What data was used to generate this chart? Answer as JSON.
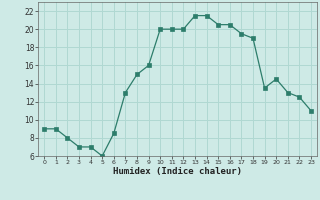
{
  "x": [
    0,
    1,
    2,
    3,
    4,
    5,
    6,
    7,
    8,
    9,
    10,
    11,
    12,
    13,
    14,
    15,
    16,
    17,
    18,
    19,
    20,
    21,
    22,
    23
  ],
  "y": [
    9.0,
    9.0,
    8.0,
    7.0,
    7.0,
    6.0,
    8.5,
    13.0,
    15.0,
    16.0,
    20.0,
    20.0,
    20.0,
    21.5,
    21.5,
    20.5,
    20.5,
    19.5,
    19.0,
    13.5,
    14.5,
    13.0,
    12.5,
    11.0
  ],
  "title": "",
  "xlabel": "Humidex (Indice chaleur)",
  "ylabel": "",
  "ylim": [
    6,
    23
  ],
  "xlim": [
    -0.5,
    23.5
  ],
  "line_color": "#2d7d6b",
  "marker_color": "#2d7d6b",
  "bg_color": "#ceeae6",
  "grid_color": "#b0d8d2",
  "yticks": [
    6,
    8,
    10,
    12,
    14,
    16,
    18,
    20,
    22
  ],
  "xticks": [
    0,
    1,
    2,
    3,
    4,
    5,
    6,
    7,
    8,
    9,
    10,
    11,
    12,
    13,
    14,
    15,
    16,
    17,
    18,
    19,
    20,
    21,
    22,
    23
  ]
}
